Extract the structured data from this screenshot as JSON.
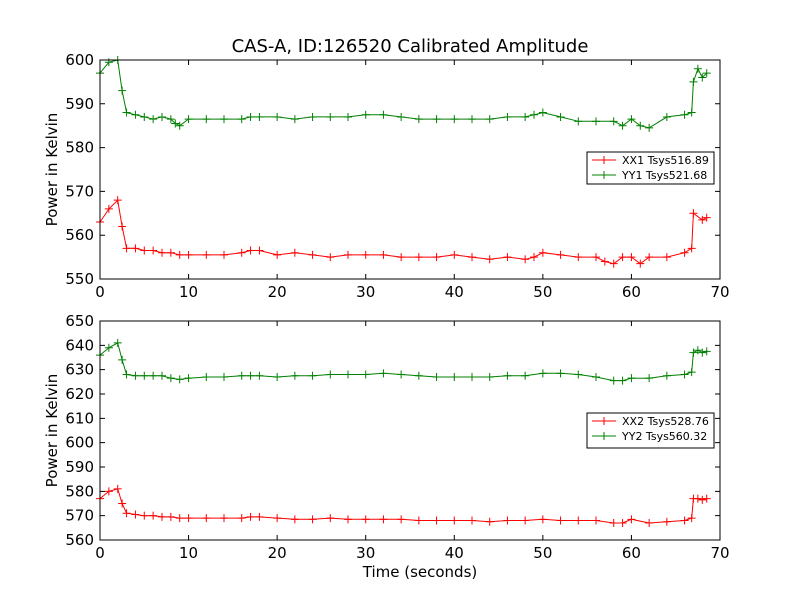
{
  "title": "CAS-A, ID:126520 Calibrated Amplitude",
  "chart_data": [
    {
      "type": "line",
      "title": "CAS-A, ID:126520 Calibrated Amplitude",
      "xlabel": "",
      "ylabel": "Power in Kelvin",
      "xlim": [
        0,
        70
      ],
      "ylim": [
        550,
        600
      ],
      "xticks": [
        0,
        10,
        20,
        30,
        40,
        50,
        60,
        70
      ],
      "yticks": [
        550,
        560,
        570,
        580,
        590,
        600
      ],
      "grid": false,
      "legend_position": "center-right",
      "marker": "+",
      "series": [
        {
          "name": "XX1 Tsys516.89",
          "color": "#ff0000",
          "x": [
            0,
            1,
            2,
            2.5,
            3,
            4,
            5,
            6,
            7,
            8,
            9,
            10,
            12,
            14,
            16,
            17,
            18,
            20,
            22,
            24,
            26,
            28,
            30,
            32,
            34,
            36,
            38,
            40,
            42,
            44,
            46,
            48,
            49,
            50,
            52,
            54,
            56,
            57,
            58,
            59,
            60,
            61,
            62,
            64,
            66,
            66.8,
            67,
            68,
            68.5
          ],
          "y": [
            563,
            566,
            568,
            562,
            557,
            557,
            556.5,
            556.5,
            556,
            556,
            555.5,
            555.5,
            555.5,
            555.5,
            556,
            556.5,
            556.5,
            555.5,
            556,
            555.5,
            555,
            555.5,
            555.5,
            555.5,
            555,
            555,
            555,
            555.5,
            555,
            554.5,
            555,
            554.5,
            555,
            556,
            555.5,
            555,
            555,
            554,
            553.5,
            555,
            555,
            553.5,
            555,
            555,
            556,
            557,
            565,
            563.5,
            564
          ]
        },
        {
          "name": "YY1 Tsys521.68",
          "color": "#008000",
          "x": [
            0,
            1,
            2,
            2.5,
            3,
            4,
            5,
            6,
            7,
            8,
            8.5,
            9,
            10,
            12,
            14,
            16,
            17,
            18,
            20,
            22,
            24,
            26,
            28,
            30,
            32,
            34,
            36,
            38,
            40,
            42,
            44,
            46,
            48,
            49,
            50,
            52,
            54,
            56,
            58,
            59,
            60,
            61,
            62,
            64,
            66,
            66.8,
            67,
            67.5,
            68,
            68.5
          ],
          "y": [
            597,
            599.5,
            600,
            593,
            588,
            587.5,
            587,
            586.5,
            587,
            586.5,
            585.5,
            585,
            586.5,
            586.5,
            586.5,
            586.5,
            587,
            587,
            587,
            586.5,
            587,
            587,
            587,
            587.5,
            587.5,
            587,
            586.5,
            586.5,
            586.5,
            586.5,
            586.5,
            587,
            587,
            587.5,
            588,
            587,
            586,
            586,
            586,
            585,
            586.5,
            585,
            584.5,
            587,
            587.5,
            588,
            595,
            598,
            596,
            597
          ]
        }
      ]
    },
    {
      "type": "line",
      "title": "",
      "xlabel": "Time (seconds)",
      "ylabel": "Power in Kelvin",
      "xlim": [
        0,
        70
      ],
      "ylim": [
        560,
        650
      ],
      "xticks": [
        0,
        10,
        20,
        30,
        40,
        50,
        60,
        70
      ],
      "yticks": [
        560,
        570,
        580,
        590,
        600,
        610,
        620,
        630,
        640,
        650
      ],
      "grid": false,
      "legend_position": "center-right",
      "marker": "+",
      "series": [
        {
          "name": "XX2 Tsys528.76",
          "color": "#ff0000",
          "x": [
            0,
            1,
            2,
            2.5,
            3,
            4,
            5,
            6,
            7,
            8,
            9,
            10,
            12,
            14,
            16,
            17,
            18,
            20,
            22,
            24,
            26,
            28,
            30,
            32,
            34,
            36,
            38,
            40,
            42,
            44,
            46,
            48,
            50,
            52,
            54,
            56,
            58,
            59,
            60,
            62,
            64,
            66,
            66.8,
            67,
            67.5,
            68,
            68.5
          ],
          "y": [
            577,
            580,
            581,
            575,
            571,
            570.5,
            570,
            570,
            569.5,
            569.5,
            569,
            569,
            569,
            569,
            569,
            569.5,
            569.5,
            569,
            568.5,
            568.5,
            569,
            568.5,
            568.5,
            568.5,
            568.5,
            568,
            568,
            568,
            568,
            567.5,
            568,
            568,
            568.5,
            568,
            568,
            568,
            567,
            567,
            568.5,
            567,
            567.5,
            568,
            569,
            577,
            577,
            576.5,
            577
          ]
        },
        {
          "name": "YY2 Tsys560.32",
          "color": "#008000",
          "x": [
            0,
            1,
            2,
            2.5,
            3,
            4,
            5,
            6,
            7,
            8,
            9,
            10,
            12,
            14,
            16,
            17,
            18,
            20,
            22,
            24,
            26,
            28,
            30,
            32,
            34,
            36,
            38,
            40,
            42,
            44,
            46,
            48,
            50,
            52,
            54,
            56,
            58,
            59,
            60,
            62,
            64,
            66,
            66.8,
            67,
            67.5,
            68,
            68.5
          ],
          "y": [
            636,
            639,
            641,
            634,
            628,
            627.5,
            627.5,
            627.5,
            627.5,
            626.5,
            626,
            626.5,
            627,
            627,
            627.5,
            627.5,
            627.5,
            627,
            627.5,
            627.5,
            628,
            628,
            628,
            628.5,
            628,
            627.5,
            627,
            627,
            627,
            627,
            627.5,
            627.5,
            628.5,
            628.5,
            628,
            627,
            625.5,
            625.5,
            626.5,
            626.5,
            627.5,
            628,
            629,
            637,
            638,
            637,
            637.5
          ]
        }
      ]
    }
  ]
}
